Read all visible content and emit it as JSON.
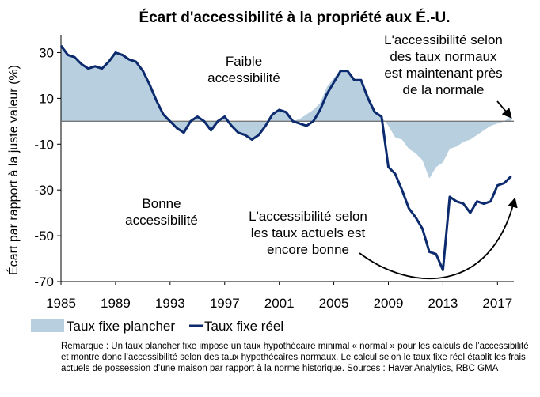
{
  "chart_data": {
    "type": "area+line",
    "title": "Écart d'accessibilité à la propriété aux É.-U.",
    "ylabel": "Écart par rapport à la juste valeur (%)",
    "xlim": [
      1985,
      2018.2
    ],
    "ylim": [
      -70,
      35
    ],
    "x_ticks": [
      1985,
      1989,
      1993,
      1997,
      2001,
      2005,
      2009,
      2013,
      2017
    ],
    "y_ticks": [
      30,
      10,
      -10,
      -30,
      -50,
      -70
    ],
    "series": [
      {
        "name": "Taux fixe plancher",
        "style": "area",
        "color": "#b7cfdf",
        "points": [
          [
            1985.0,
            33
          ],
          [
            1985.5,
            29
          ],
          [
            1986.0,
            27
          ],
          [
            1986.5,
            25
          ],
          [
            1987.0,
            23
          ],
          [
            1987.5,
            24
          ],
          [
            1988.0,
            23
          ],
          [
            1988.5,
            26
          ],
          [
            1989.0,
            30
          ],
          [
            1989.5,
            29
          ],
          [
            1990.0,
            27
          ],
          [
            1990.5,
            26
          ],
          [
            1991.0,
            22
          ],
          [
            1991.5,
            16
          ],
          [
            1992.0,
            9
          ],
          [
            1992.5,
            3
          ],
          [
            1993.0,
            0
          ],
          [
            1993.5,
            -3
          ],
          [
            1994.0,
            -5
          ],
          [
            1994.5,
            0
          ],
          [
            1995.0,
            2
          ],
          [
            1995.5,
            0
          ],
          [
            1996.0,
            -4
          ],
          [
            1996.5,
            0
          ],
          [
            1997.0,
            2
          ],
          [
            1997.5,
            -2
          ],
          [
            1998.0,
            -5
          ],
          [
            1998.5,
            -6
          ],
          [
            1999.0,
            -8
          ],
          [
            1999.5,
            -6
          ],
          [
            2000.0,
            -2
          ],
          [
            2000.5,
            3
          ],
          [
            2001.0,
            5
          ],
          [
            2001.5,
            4
          ],
          [
            2002.0,
            0
          ],
          [
            2002.5,
            1
          ],
          [
            2003.0,
            3
          ],
          [
            2003.5,
            5
          ],
          [
            2004.0,
            8
          ],
          [
            2004.5,
            15
          ],
          [
            2005.0,
            19
          ],
          [
            2005.5,
            22
          ],
          [
            2006.0,
            22
          ],
          [
            2006.5,
            18
          ],
          [
            2007.0,
            18
          ],
          [
            2007.5,
            12
          ],
          [
            2008.0,
            5
          ],
          [
            2008.5,
            2
          ],
          [
            2009.0,
            -2
          ],
          [
            2009.5,
            -7
          ],
          [
            2010.0,
            -8
          ],
          [
            2010.5,
            -12
          ],
          [
            2011.0,
            -14
          ],
          [
            2011.5,
            -17
          ],
          [
            2012.0,
            -25
          ],
          [
            2012.5,
            -20
          ],
          [
            2013.0,
            -18
          ],
          [
            2013.5,
            -12
          ],
          [
            2014.0,
            -11
          ],
          [
            2014.5,
            -9
          ],
          [
            2015.0,
            -8
          ],
          [
            2015.5,
            -6
          ],
          [
            2016.0,
            -4
          ],
          [
            2016.5,
            -2
          ],
          [
            2017.0,
            -1
          ],
          [
            2017.5,
            0
          ],
          [
            2018.0,
            2
          ]
        ]
      },
      {
        "name": "Taux fixe réel",
        "style": "line",
        "color": "#0c2a6e",
        "points": [
          [
            1985.0,
            33
          ],
          [
            1985.5,
            29
          ],
          [
            1986.0,
            28
          ],
          [
            1986.5,
            25
          ],
          [
            1987.0,
            23
          ],
          [
            1987.5,
            24
          ],
          [
            1988.0,
            23
          ],
          [
            1988.5,
            26
          ],
          [
            1989.0,
            30
          ],
          [
            1989.5,
            29
          ],
          [
            1990.0,
            27
          ],
          [
            1990.5,
            26
          ],
          [
            1991.0,
            22
          ],
          [
            1991.5,
            16
          ],
          [
            1992.0,
            9
          ],
          [
            1992.5,
            3
          ],
          [
            1993.0,
            0
          ],
          [
            1993.5,
            -3
          ],
          [
            1994.0,
            -5
          ],
          [
            1994.5,
            0
          ],
          [
            1995.0,
            2
          ],
          [
            1995.5,
            0
          ],
          [
            1996.0,
            -4
          ],
          [
            1996.5,
            0
          ],
          [
            1997.0,
            2
          ],
          [
            1997.5,
            -2
          ],
          [
            1998.0,
            -5
          ],
          [
            1998.5,
            -6
          ],
          [
            1999.0,
            -8
          ],
          [
            1999.5,
            -6
          ],
          [
            2000.0,
            -2
          ],
          [
            2000.5,
            3
          ],
          [
            2001.0,
            5
          ],
          [
            2001.5,
            4
          ],
          [
            2002.0,
            0
          ],
          [
            2002.5,
            -1
          ],
          [
            2003.0,
            -2
          ],
          [
            2003.5,
            0
          ],
          [
            2004.0,
            5
          ],
          [
            2004.5,
            12
          ],
          [
            2005.0,
            17
          ],
          [
            2005.5,
            22
          ],
          [
            2006.0,
            22
          ],
          [
            2006.5,
            18
          ],
          [
            2007.0,
            18
          ],
          [
            2007.5,
            10
          ],
          [
            2008.0,
            4
          ],
          [
            2008.5,
            2
          ],
          [
            2009.0,
            -20
          ],
          [
            2009.5,
            -23
          ],
          [
            2010.0,
            -30
          ],
          [
            2010.5,
            -38
          ],
          [
            2011.0,
            -42
          ],
          [
            2011.5,
            -47
          ],
          [
            2012.0,
            -57
          ],
          [
            2012.5,
            -58
          ],
          [
            2013.0,
            -65
          ],
          [
            2013.5,
            -33
          ],
          [
            2014.0,
            -35
          ],
          [
            2014.5,
            -36
          ],
          [
            2015.0,
            -40
          ],
          [
            2015.5,
            -35
          ],
          [
            2016.0,
            -36
          ],
          [
            2016.5,
            -35
          ],
          [
            2017.0,
            -28
          ],
          [
            2017.5,
            -27
          ],
          [
            2018.0,
            -24
          ]
        ]
      }
    ],
    "annotations": [
      {
        "name": "faible",
        "lines": [
          "Faible",
          "accessibilité"
        ]
      },
      {
        "name": "bonne",
        "lines": [
          "Bonne",
          "accessibilité"
        ]
      },
      {
        "name": "normaux",
        "lines": [
          "L'accessibilité selon",
          "des taux normaux",
          "est maintenant  près",
          "de la normale"
        ]
      },
      {
        "name": "actuels",
        "lines": [
          "L'accessibilité selon",
          "les taux actuels est",
          "encore bonne"
        ]
      }
    ],
    "legend": {
      "placement": "bottom-left"
    },
    "note": "Remarque : Un taux plancher fixe impose un taux hypothécaire minimal « normal » pour les calculs de l’accessibilité et montre donc l’accessibilité selon des taux hypothécaires normaux.  Le calcul selon le taux fixe réel établit les frais actuels de possession d’une maison par rapport  à la norme historique. Sources : Haver Analytics, RBC GMA"
  }
}
